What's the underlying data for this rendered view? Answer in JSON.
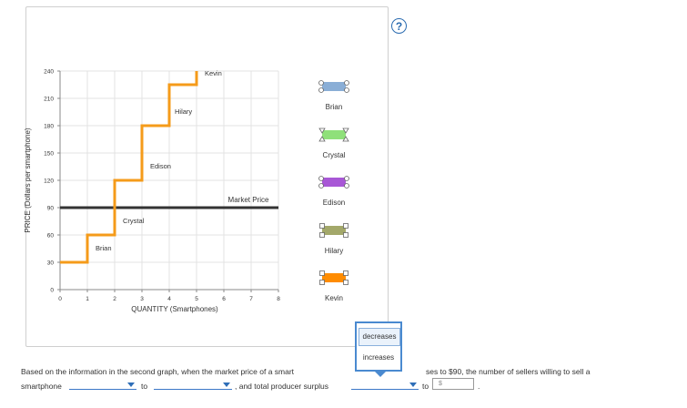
{
  "help_icon": "?",
  "chart_data": {
    "type": "line",
    "ylabel": "PRICE (Dollars per smartphone)",
    "xlabel": "QUANTITY (Smartphones)",
    "xlim": [
      0,
      8
    ],
    "ylim": [
      0,
      240
    ],
    "x_ticks": [
      "0",
      "1",
      "2",
      "3",
      "4",
      "5",
      "6",
      "7",
      "8"
    ],
    "y_ticks": [
      "0",
      "30",
      "60",
      "90",
      "120",
      "150",
      "180",
      "210",
      "240"
    ],
    "supply_steps": [
      [
        0,
        30
      ],
      [
        1,
        30
      ],
      [
        1,
        60
      ],
      [
        2,
        60
      ],
      [
        2,
        120
      ],
      [
        3,
        120
      ],
      [
        3,
        180
      ],
      [
        4,
        180
      ],
      [
        4,
        225
      ],
      [
        5,
        225
      ],
      [
        5,
        240
      ]
    ],
    "supply_color": "#f59b1a",
    "market_price": 90,
    "market_price_label": "Market Price",
    "market_color": "#333333",
    "step_labels": [
      {
        "name": "Brian",
        "x": 1.3,
        "y": 43
      },
      {
        "name": "Crystal",
        "x": 2.3,
        "y": 73
      },
      {
        "name": "Edison",
        "x": 3.3,
        "y": 133
      },
      {
        "name": "Hilary",
        "x": 4.2,
        "y": 193
      },
      {
        "name": "Kevin",
        "x": 5.3,
        "y": 235
      }
    ],
    "legend": [
      {
        "name": "Brian",
        "color": "#8aaed6"
      },
      {
        "name": "Crystal",
        "color": "#8fe07a"
      },
      {
        "name": "Edison",
        "color": "#a857d6"
      },
      {
        "name": "Hilary",
        "color": "#a3a86a"
      },
      {
        "name": "Kevin",
        "color": "#ff8c00"
      }
    ]
  },
  "question": {
    "text1": "Based on the information in the second graph, when the market price of a smart",
    "text1b": "ses to $90, the number of sellers willing to sell a",
    "text2a": "smartphone",
    "text2b": "to",
    "text2c": ", and total producer surplus",
    "text2d": "to",
    "dollar_placeholder": "$",
    "end_punct": ".",
    "dropdown_options": [
      "decreases",
      "increases"
    ]
  }
}
